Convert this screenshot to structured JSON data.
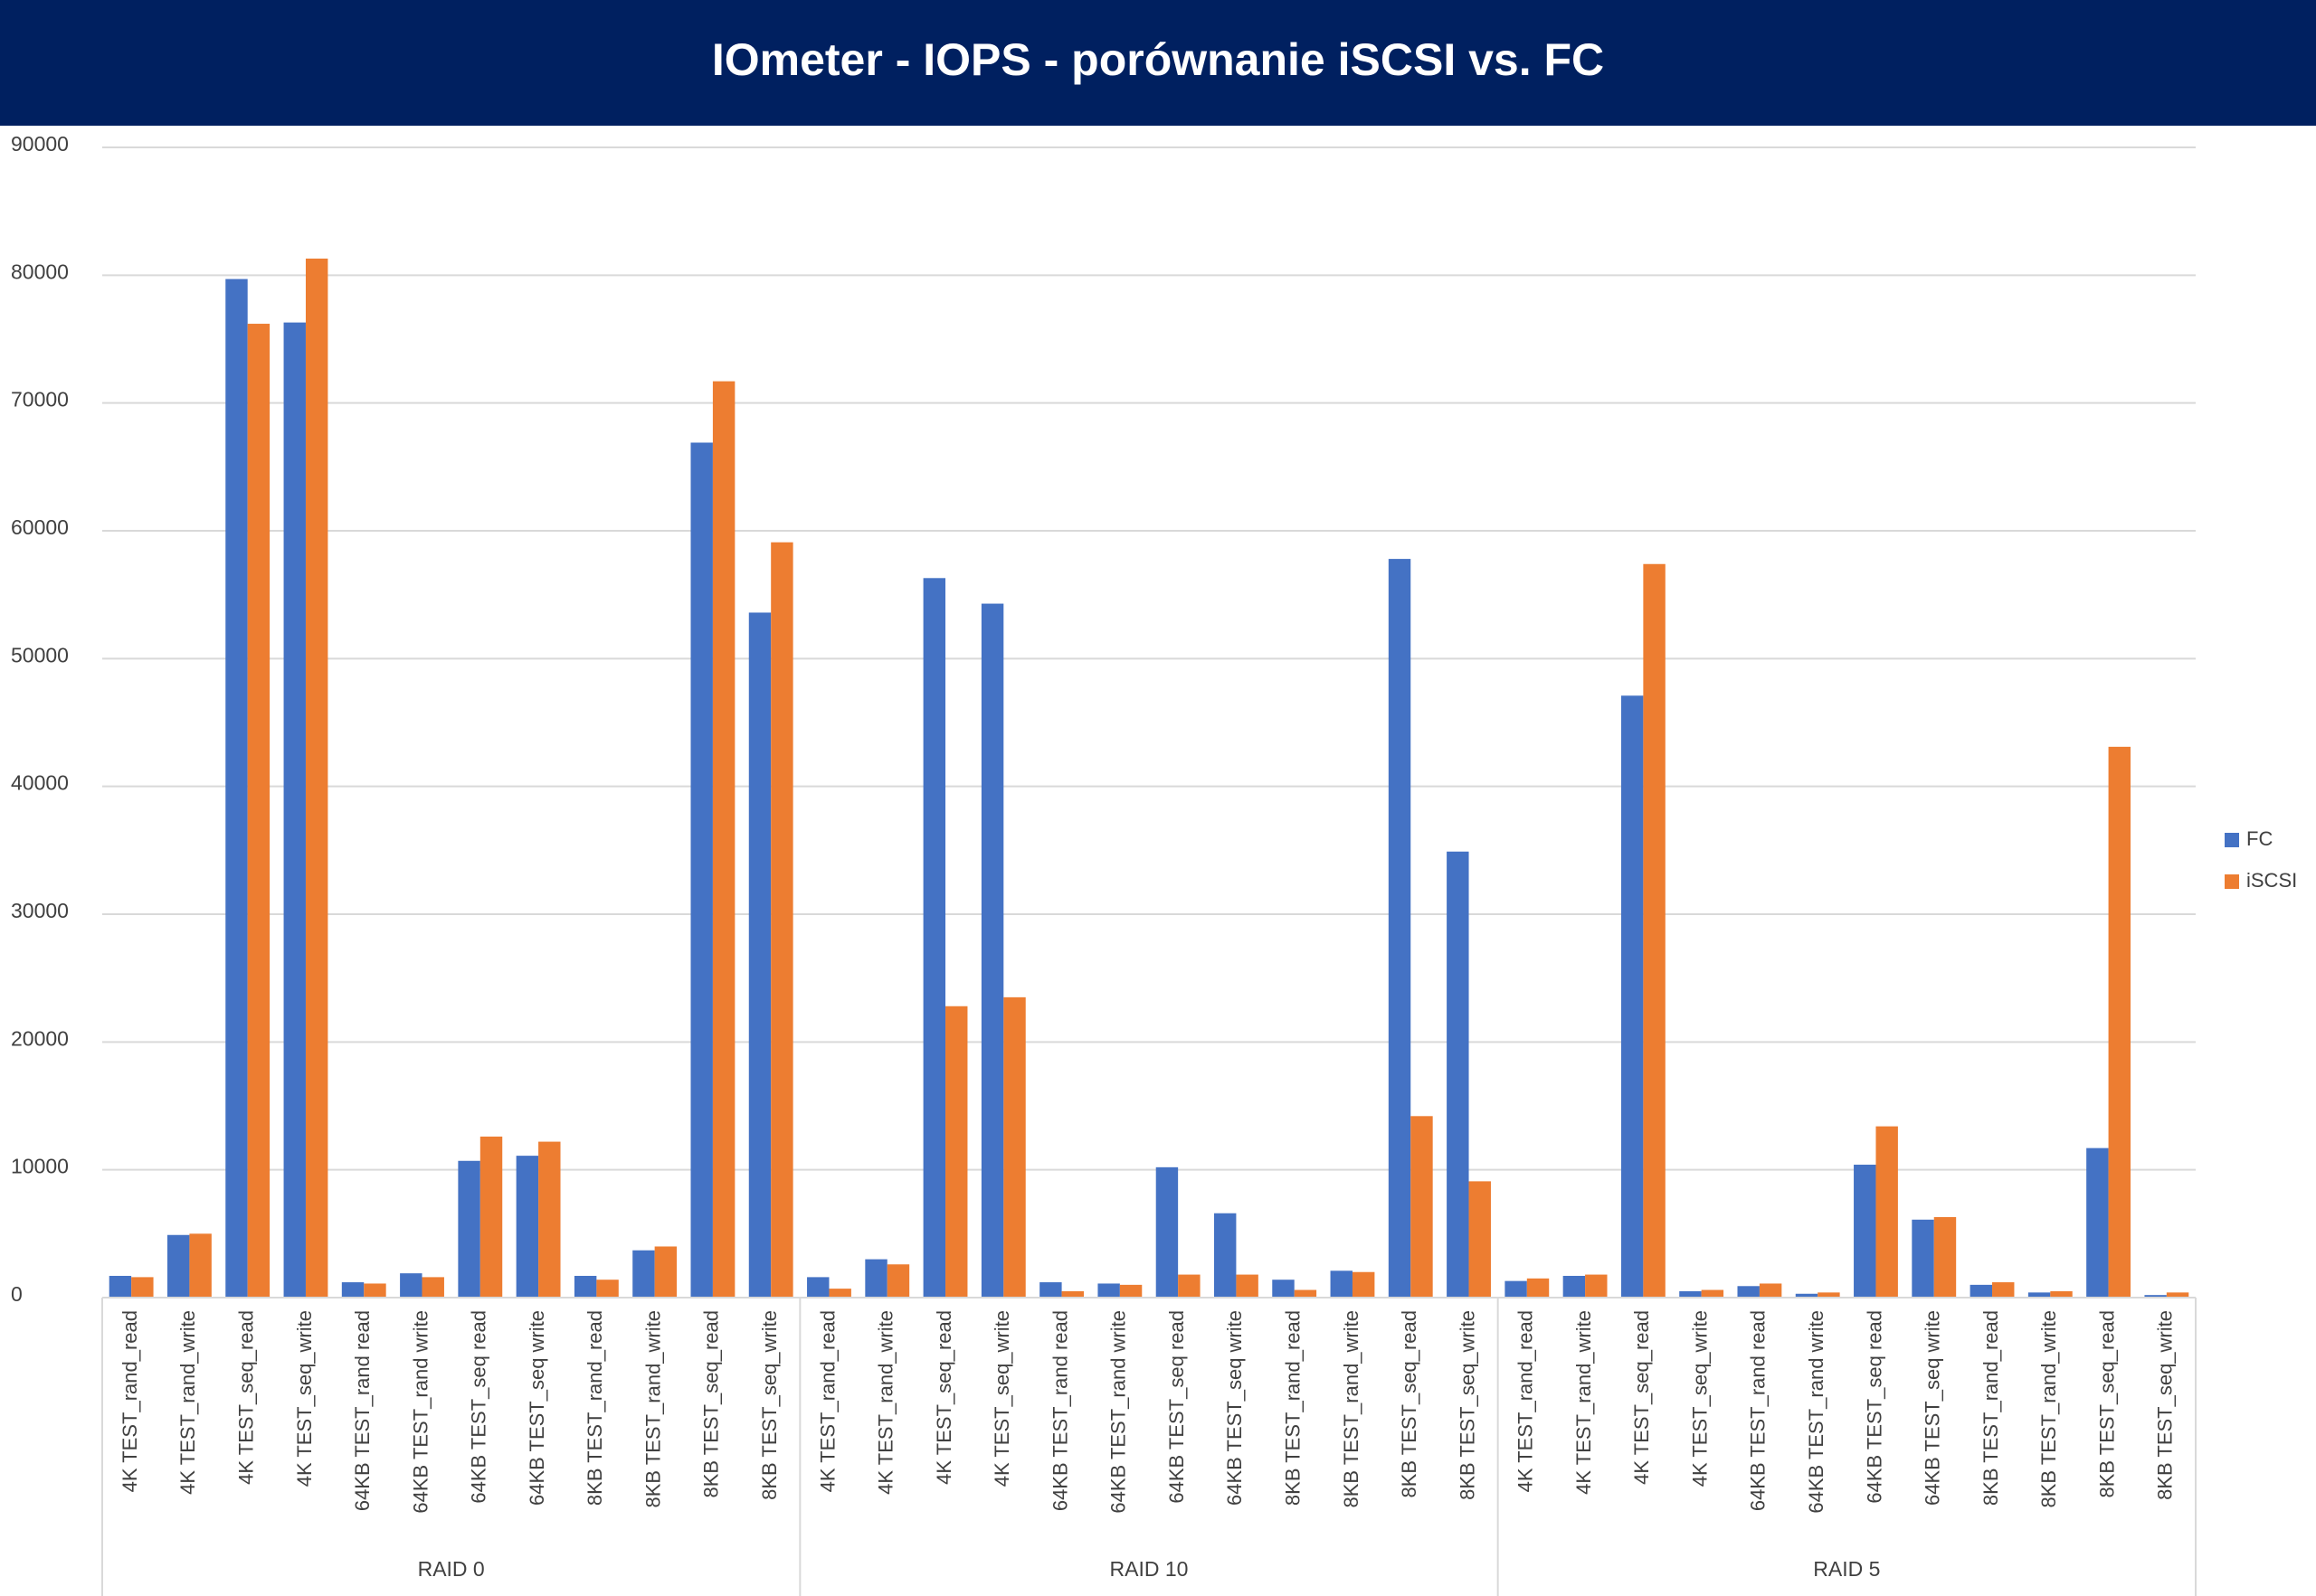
{
  "chart_data": {
    "type": "bar",
    "title": "IOmeter - IOPS - porównanie iSCSI vs. FC",
    "groups": [
      {
        "label": "RAID 0",
        "categories": [
          "4K TEST_rand_read",
          "4K TEST_rand_write",
          "4K TEST_seq_read",
          "4K TEST_seq_write",
          "64KB TEST_rand read",
          "64KB TEST_rand write",
          "64KB TEST_seq read",
          "64KB TEST_seq write",
          "8KB TEST_rand_read",
          "8KB TEST_rand_write",
          "8KB TEST_seq_read",
          "8KB TEST_seq_write"
        ]
      },
      {
        "label": "RAID 10",
        "categories": [
          "4K TEST_rand_read",
          "4K TEST_rand_write",
          "4K TEST_seq_read",
          "4K TEST_seq_write",
          "64KB TEST_rand read",
          "64KB TEST_rand write",
          "64KB TEST_seq read",
          "64KB TEST_seq write",
          "8KB TEST_rand_read",
          "8KB TEST_rand_write",
          "8KB TEST_seq_read",
          "8KB TEST_seq_write"
        ]
      },
      {
        "label": "RAID 5",
        "categories": [
          "4K TEST_rand_read",
          "4K TEST_rand_write",
          "4K TEST_seq_read",
          "4K TEST_seq_write",
          "64KB TEST_rand read",
          "64KB TEST_rand write",
          "64KB TEST_seq read",
          "64KB TEST_seq write",
          "8KB TEST_rand_read",
          "8KB TEST_rand_write",
          "8KB TEST_seq_read",
          "8KB TEST_seq_write"
        ]
      }
    ],
    "series": [
      {
        "name": "FC",
        "color": "#4472c4",
        "values": [
          1700,
          4900,
          79700,
          76300,
          1200,
          1900,
          10700,
          11100,
          1700,
          3700,
          66900,
          53600,
          1600,
          3000,
          56300,
          54300,
          1200,
          1100,
          10200,
          6600,
          1400,
          2100,
          57800,
          34900,
          1300,
          1700,
          47100,
          500,
          900,
          300,
          10400,
          6100,
          1000,
          400,
          11700,
          200
        ]
      },
      {
        "name": "iSCSI",
        "color": "#ed7d31",
        "values": [
          1600,
          5000,
          76200,
          81300,
          1100,
          1600,
          12600,
          12200,
          1400,
          4000,
          71700,
          59100,
          700,
          2600,
          22800,
          23500,
          500,
          1000,
          1800,
          1800,
          600,
          2000,
          14200,
          9100,
          1500,
          1800,
          57400,
          600,
          1100,
          400,
          13400,
          6300,
          1200,
          500,
          43100,
          400
        ]
      }
    ],
    "ylim": [
      0,
      90000
    ],
    "yticks": [
      0,
      10000,
      20000,
      30000,
      40000,
      50000,
      60000,
      70000,
      80000,
      90000
    ],
    "grid": true,
    "legend": "right"
  }
}
